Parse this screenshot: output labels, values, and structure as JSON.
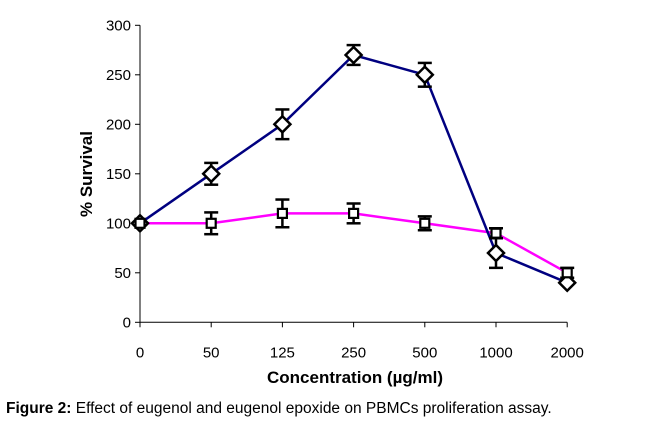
{
  "chart_data": {
    "type": "line",
    "title": "",
    "xlabel": "Concentration (µg/ml)",
    "ylabel": "% Survival",
    "categories": [
      "0",
      "50",
      "125",
      "250",
      "500",
      "1000",
      "2000"
    ],
    "ylim": [
      0,
      300
    ],
    "yticks": [
      0,
      50,
      100,
      150,
      200,
      250,
      300
    ],
    "grid": false,
    "legend": "none",
    "series": [
      {
        "name": "diamond series",
        "marker": "diamond",
        "color": "#000080",
        "values": [
          100,
          150,
          200,
          270,
          250,
          70,
          40
        ],
        "errors": [
          0,
          11,
          15,
          10,
          12,
          15,
          0
        ]
      },
      {
        "name": "square series",
        "marker": "square",
        "color": "#ff00ff",
        "values": [
          100,
          100,
          110,
          110,
          100,
          90,
          50
        ],
        "errors": [
          0,
          11,
          14,
          10,
          7,
          5,
          5
        ]
      }
    ]
  },
  "caption": {
    "label": "Figure 2:",
    "text": " Effect of eugenol and eugenol epoxide on PBMCs proliferation assay."
  }
}
